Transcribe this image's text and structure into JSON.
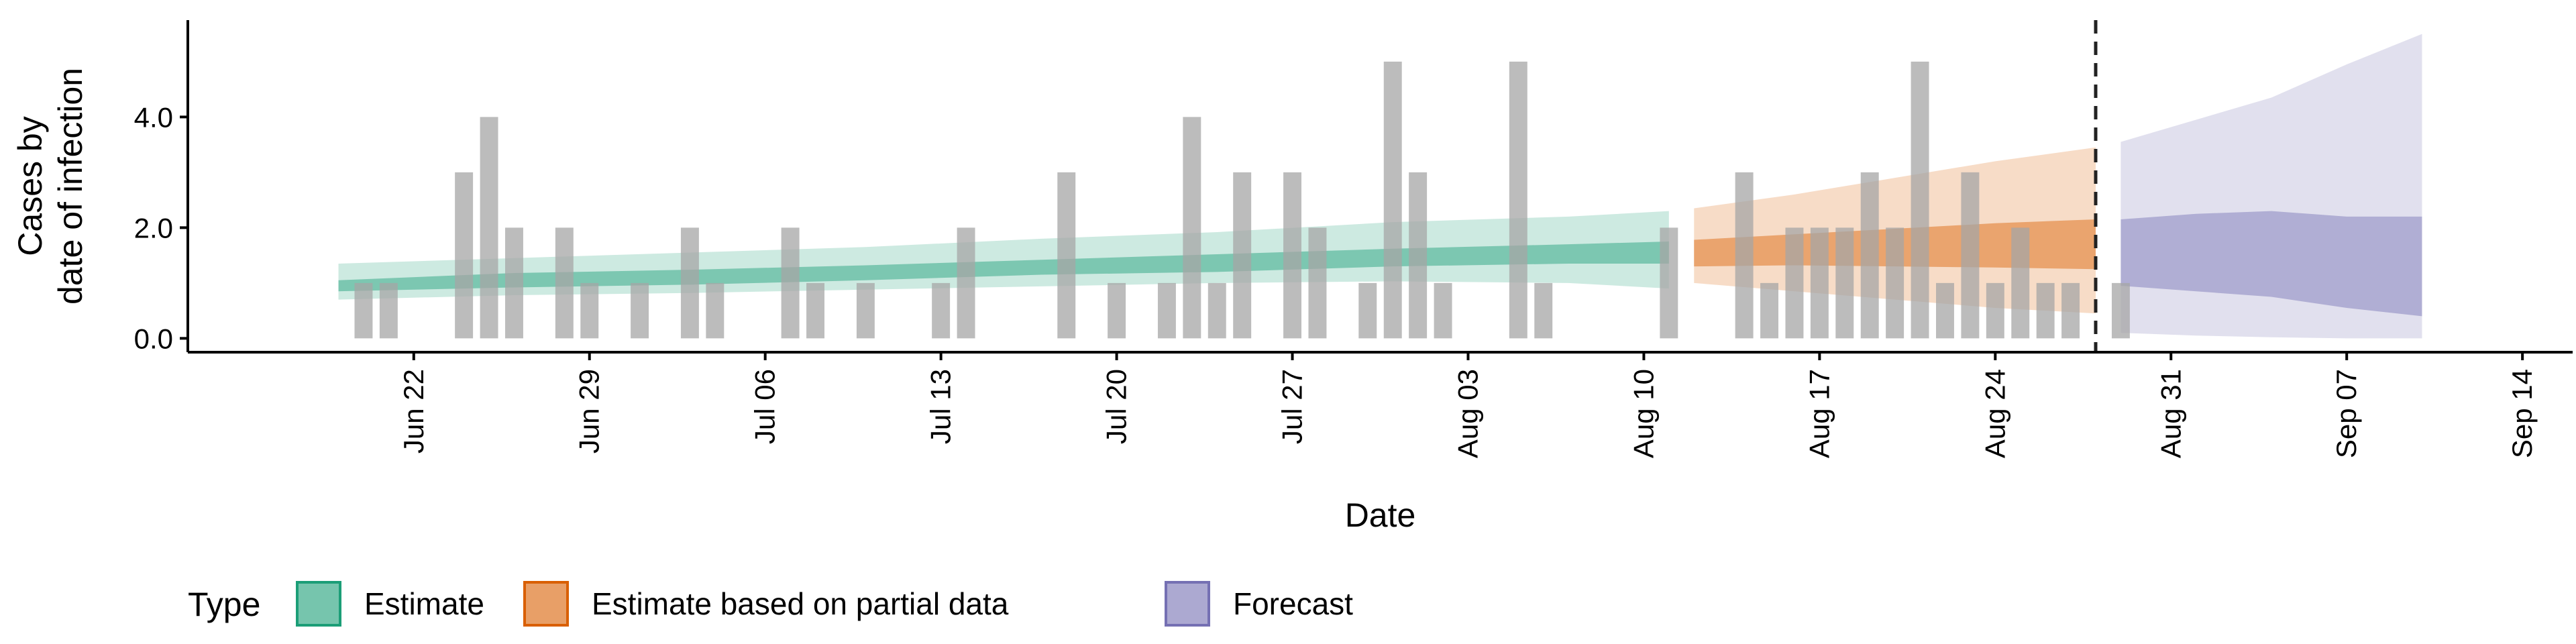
{
  "chart_data": {
    "type": "bar",
    "xlabel": "Date",
    "ylabel_lines": [
      "Cases by",
      "date of infection"
    ],
    "ylim": [
      -0.25,
      5.75
    ],
    "xlim": [
      "2020-06-13",
      "2020-09-16"
    ],
    "y_ticks": [
      {
        "value": 0,
        "label": "0.0"
      },
      {
        "value": 2,
        "label": "2.0"
      },
      {
        "value": 4,
        "label": "4.0"
      }
    ],
    "x_ticks": [
      {
        "date": "2020-06-22",
        "label": "Jun 22"
      },
      {
        "date": "2020-06-29",
        "label": "Jun 29"
      },
      {
        "date": "2020-07-06",
        "label": "Jul 06"
      },
      {
        "date": "2020-07-13",
        "label": "Jul 13"
      },
      {
        "date": "2020-07-20",
        "label": "Jul 20"
      },
      {
        "date": "2020-07-27",
        "label": "Jul 27"
      },
      {
        "date": "2020-08-03",
        "label": "Aug 03"
      },
      {
        "date": "2020-08-10",
        "label": "Aug 10"
      },
      {
        "date": "2020-08-17",
        "label": "Aug 17"
      },
      {
        "date": "2020-08-24",
        "label": "Aug 24"
      },
      {
        "date": "2020-08-31",
        "label": "Aug 31"
      },
      {
        "date": "2020-09-07",
        "label": "Sep 07"
      },
      {
        "date": "2020-09-14",
        "label": "Sep 14"
      }
    ],
    "cases": {
      "dates": [
        "2020-06-20",
        "2020-06-21",
        "2020-06-24",
        "2020-06-25",
        "2020-06-26",
        "2020-06-28",
        "2020-06-29",
        "2020-07-01",
        "2020-07-03",
        "2020-07-04",
        "2020-07-07",
        "2020-07-08",
        "2020-07-10",
        "2020-07-13",
        "2020-07-14",
        "2020-07-18",
        "2020-07-20",
        "2020-07-22",
        "2020-07-23",
        "2020-07-24",
        "2020-07-25",
        "2020-07-27",
        "2020-07-28",
        "2020-07-30",
        "2020-07-31",
        "2020-08-01",
        "2020-08-02",
        "2020-08-05",
        "2020-08-06",
        "2020-08-11",
        "2020-08-14",
        "2020-08-15",
        "2020-08-16",
        "2020-08-17",
        "2020-08-18",
        "2020-08-19",
        "2020-08-20",
        "2020-08-21",
        "2020-08-22",
        "2020-08-23",
        "2020-08-24",
        "2020-08-25",
        "2020-08-26",
        "2020-08-27",
        "2020-08-29"
      ],
      "values": [
        1,
        1,
        3,
        4,
        2,
        2,
        1,
        1,
        2,
        1,
        2,
        1,
        1,
        1,
        2,
        3,
        1,
        1,
        4,
        1,
        3,
        3,
        2,
        1,
        5,
        3,
        1,
        5,
        1,
        2,
        3,
        1,
        2,
        2,
        2,
        3,
        2,
        5,
        1,
        3,
        1,
        2,
        1,
        1,
        1
      ]
    },
    "vline_date": "2020-08-28",
    "series": [
      {
        "name": "Estimate",
        "color": "#1b9e77",
        "dates": [
          "2020-06-19",
          "2020-06-26",
          "2020-07-03",
          "2020-07-10",
          "2020-07-17",
          "2020-07-24",
          "2020-07-31",
          "2020-08-07",
          "2020-08-11"
        ],
        "median": [
          0.95,
          1.05,
          1.1,
          1.2,
          1.3,
          1.38,
          1.48,
          1.55,
          1.58
        ],
        "inner_lower": [
          0.85,
          0.92,
          0.97,
          1.05,
          1.15,
          1.2,
          1.3,
          1.35,
          1.35
        ],
        "inner_upper": [
          1.05,
          1.18,
          1.24,
          1.32,
          1.42,
          1.52,
          1.62,
          1.7,
          1.75
        ],
        "outer_lower": [
          0.7,
          0.78,
          0.82,
          0.88,
          0.94,
          1.0,
          1.03,
          1.0,
          0.9
        ],
        "outer_upper": [
          1.35,
          1.45,
          1.55,
          1.65,
          1.8,
          1.92,
          2.1,
          2.2,
          2.3
        ]
      },
      {
        "name": "Estimate based on partial data",
        "color": "#d95f02",
        "dates": [
          "2020-08-12",
          "2020-08-16",
          "2020-08-20",
          "2020-08-24",
          "2020-08-28"
        ],
        "median": [
          1.55,
          1.62,
          1.68,
          1.72,
          1.75
        ],
        "inner_lower": [
          1.3,
          1.32,
          1.3,
          1.28,
          1.25
        ],
        "inner_upper": [
          1.78,
          1.88,
          1.98,
          2.08,
          2.15
        ],
        "outer_lower": [
          1.0,
          0.85,
          0.7,
          0.55,
          0.45
        ],
        "outer_upper": [
          2.35,
          2.6,
          2.9,
          3.2,
          3.45
        ]
      },
      {
        "name": "Forecast",
        "color": "#7570b3",
        "dates": [
          "2020-08-29",
          "2020-09-01",
          "2020-09-04",
          "2020-09-07",
          "2020-09-10"
        ],
        "median": [
          1.55,
          1.55,
          1.55,
          1.5,
          1.45
        ],
        "inner_lower": [
          0.95,
          0.85,
          0.75,
          0.55,
          0.4
        ],
        "inner_upper": [
          2.15,
          2.25,
          2.3,
          2.2,
          2.2
        ],
        "outer_lower": [
          0.1,
          0.05,
          0.02,
          0.0,
          0.0
        ],
        "outer_upper": [
          3.55,
          3.95,
          4.35,
          4.95,
          5.5
        ]
      }
    ],
    "legend": {
      "title": "Type",
      "position": "bottom",
      "items": [
        "Estimate",
        "Estimate based on partial data",
        "Forecast"
      ]
    }
  }
}
